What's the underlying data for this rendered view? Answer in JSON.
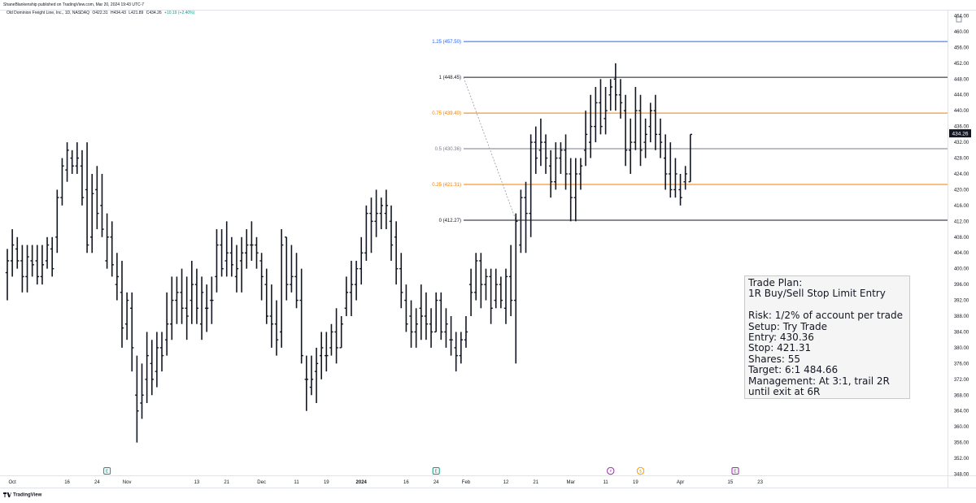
{
  "header": {
    "publisher": "ShaneBlankenship published on TradingView.com, Mar 20, 2024 19:43 UTC-7",
    "symbol": "Old Dominion Freight Line, Inc., 1D, NASDAQ",
    "open": "O422.31",
    "high": "H434.43",
    "low": "L421.89",
    "close": "C434.26",
    "change": "+10.19 (+2.40%)"
  },
  "footer": {
    "brand": "TradingView"
  },
  "trade_plan": {
    "lines": [
      "Trade Plan:",
      "1R Buy/Sell Stop Limit Entry",
      "",
      "Risk: 1/2% of account per trade",
      "Setup: Try Trade",
      "Entry: 430.36",
      "Stop: 421.31",
      "Shares: 55",
      "Target: 6:1  484.66",
      "Management: At 3:1, trail 2R",
      "until exit at 6R"
    ]
  },
  "colors": {
    "bars": "#131722",
    "fib_blue": "#2962ff",
    "fib_orange": "#f57c00",
    "fib_gray": "#787b86",
    "fib_black": "#131722",
    "price_tag_bg": "#131722",
    "event_green": "#089981",
    "event_purple": "#9c27b0",
    "event_orange": "#ff9800"
  },
  "chart_data": {
    "type": "ohlc",
    "ylim": [
      348,
      464
    ],
    "y_ticks": [
      "464.00",
      "460.00",
      "456.00",
      "452.00",
      "448.00",
      "444.00",
      "440.00",
      "436.00",
      "432.00",
      "428.00",
      "424.00",
      "420.00",
      "416.00",
      "412.00",
      "408.00",
      "404.00",
      "400.00",
      "396.00",
      "392.00",
      "388.00",
      "384.00",
      "380.00",
      "376.00",
      "372.00",
      "368.00",
      "364.00",
      "360.00",
      "356.00",
      "352.00",
      "348.00"
    ],
    "x_labels": [
      {
        "label": "Oct",
        "bar": 1
      },
      {
        "label": "16",
        "bar": 12
      },
      {
        "label": "24",
        "bar": 18
      },
      {
        "label": "Nov",
        "bar": 24
      },
      {
        "label": "13",
        "bar": 38
      },
      {
        "label": "21",
        "bar": 44
      },
      {
        "label": "Dec",
        "bar": 51
      },
      {
        "label": "11",
        "bar": 58
      },
      {
        "label": "19",
        "bar": 64
      },
      {
        "label": "2024",
        "bar": 71
      },
      {
        "label": "16",
        "bar": 80
      },
      {
        "label": "24",
        "bar": 86
      },
      {
        "label": "Feb",
        "bar": 92
      },
      {
        "label": "12",
        "bar": 100
      },
      {
        "label": "21",
        "bar": 106
      },
      {
        "label": "Mar",
        "bar": 113
      },
      {
        "label": "11",
        "bar": 120
      },
      {
        "label": "19",
        "bar": 126
      },
      {
        "label": "Apr",
        "bar": 135
      },
      {
        "label": "15",
        "bar": 145
      },
      {
        "label": "23",
        "bar": 151
      }
    ],
    "last_price": "434.26",
    "last_price_value": 434.26,
    "bars": [
      [
        399,
        405,
        392,
        402
      ],
      [
        402,
        410,
        398,
        406
      ],
      [
        405,
        408,
        400,
        402
      ],
      [
        402,
        406,
        394,
        398
      ],
      [
        398,
        406,
        394,
        403
      ],
      [
        402,
        406,
        398,
        401
      ],
      [
        402,
        406,
        396,
        398
      ],
      [
        398,
        406,
        396,
        401
      ],
      [
        402,
        408,
        400,
        406
      ],
      [
        405,
        408,
        398,
        400
      ],
      [
        408,
        420,
        404,
        418
      ],
      [
        418,
        428,
        416,
        426
      ],
      [
        425,
        432,
        422,
        430
      ],
      [
        428,
        430,
        424,
        426
      ],
      [
        426,
        432,
        424,
        428
      ],
      [
        426,
        430,
        416,
        418
      ],
      [
        420,
        432,
        404,
        406
      ],
      [
        408,
        424,
        404,
        419
      ],
      [
        420,
        426,
        410,
        414
      ],
      [
        416,
        424,
        408,
        410
      ],
      [
        402,
        414,
        400,
        408
      ],
      [
        408,
        412,
        398,
        401
      ],
      [
        396,
        404,
        392,
        398
      ],
      [
        394,
        402,
        380,
        385
      ],
      [
        386,
        394,
        382,
        392
      ],
      [
        390,
        394,
        374,
        380
      ],
      [
        368,
        378,
        356,
        364
      ],
      [
        366,
        376,
        362,
        368
      ],
      [
        372,
        384,
        366,
        378
      ],
      [
        376,
        382,
        368,
        372
      ],
      [
        374,
        384,
        370,
        380
      ],
      [
        380,
        384,
        374,
        378
      ],
      [
        382,
        394,
        378,
        386
      ],
      [
        386,
        398,
        382,
        392
      ],
      [
        392,
        398,
        386,
        394
      ],
      [
        394,
        400,
        386,
        390
      ],
      [
        390,
        398,
        382,
        388
      ],
      [
        392,
        402,
        386,
        396
      ],
      [
        396,
        400,
        386,
        390
      ],
      [
        386,
        398,
        382,
        394
      ],
      [
        390,
        396,
        384,
        390
      ],
      [
        392,
        398,
        386,
        392
      ],
      [
        398,
        410,
        394,
        406
      ],
      [
        406,
        410,
        398,
        400
      ],
      [
        402,
        412,
        398,
        404
      ],
      [
        404,
        408,
        398,
        401
      ],
      [
        398,
        406,
        394,
        400
      ],
      [
        402,
        408,
        394,
        404
      ],
      [
        404,
        410,
        400,
        406
      ],
      [
        406,
        412,
        402,
        406
      ],
      [
        406,
        408,
        400,
        404
      ],
      [
        402,
        404,
        392,
        398
      ],
      [
        396,
        400,
        386,
        388
      ],
      [
        388,
        396,
        380,
        386
      ],
      [
        386,
        392,
        378,
        382
      ],
      [
        384,
        410,
        380,
        406
      ],
      [
        408,
        408,
        392,
        396
      ],
      [
        396,
        406,
        394,
        398
      ],
      [
        398,
        404,
        390,
        392
      ],
      [
        392,
        400,
        376,
        378
      ],
      [
        372,
        378,
        364,
        372
      ],
      [
        370,
        378,
        368,
        372
      ],
      [
        374,
        380,
        366,
        376
      ],
      [
        378,
        384,
        372,
        380
      ],
      [
        378,
        384,
        374,
        378
      ],
      [
        380,
        386,
        378,
        384
      ],
      [
        384,
        390,
        376,
        380
      ],
      [
        380,
        388,
        380,
        386
      ],
      [
        390,
        398,
        388,
        394
      ],
      [
        394,
        402,
        388,
        396
      ],
      [
        396,
        402,
        392,
        400
      ],
      [
        400,
        408,
        396,
        404
      ],
      [
        404,
        416,
        402,
        414
      ],
      [
        414,
        418,
        404,
        412
      ],
      [
        412,
        420,
        408,
        414
      ],
      [
        414,
        418,
        410,
        416
      ],
      [
        414,
        420,
        410,
        416
      ],
      [
        412,
        416,
        402,
        406
      ],
      [
        408,
        412,
        396,
        400
      ],
      [
        400,
        404,
        390,
        394
      ],
      [
        392,
        396,
        384,
        386
      ],
      [
        388,
        392,
        380,
        384
      ],
      [
        384,
        390,
        380,
        386
      ],
      [
        390,
        396,
        382,
        388
      ],
      [
        388,
        394,
        382,
        386
      ],
      [
        386,
        390,
        380,
        384
      ],
      [
        384,
        394,
        384,
        392
      ],
      [
        392,
        394,
        382,
        384
      ],
      [
        384,
        390,
        380,
        386
      ],
      [
        382,
        388,
        378,
        382
      ],
      [
        380,
        384,
        374,
        378
      ],
      [
        378,
        384,
        376,
        382
      ],
      [
        382,
        388,
        380,
        384
      ],
      [
        396,
        400,
        388,
        394
      ],
      [
        394,
        404,
        392,
        402
      ],
      [
        402,
        404,
        390,
        396
      ],
      [
        396,
        400,
        392,
        398
      ],
      [
        398,
        400,
        386,
        390
      ],
      [
        392,
        400,
        390,
        396
      ],
      [
        396,
        398,
        390,
        392
      ],
      [
        390,
        400,
        386,
        398
      ],
      [
        398,
        406,
        388,
        392
      ],
      [
        392,
        414,
        376,
        412
      ],
      [
        406,
        420,
        404,
        418
      ],
      [
        418,
        422,
        404,
        414
      ],
      [
        414,
        434,
        408,
        432
      ],
      [
        432,
        436,
        424,
        428
      ],
      [
        430,
        438,
        426,
        432
      ],
      [
        432,
        434,
        424,
        428
      ],
      [
        426,
        430,
        418,
        422
      ],
      [
        422,
        432,
        420,
        428
      ],
      [
        428,
        432,
        424,
        430
      ],
      [
        430,
        434,
        420,
        424
      ],
      [
        424,
        428,
        412,
        418
      ],
      [
        418,
        428,
        412,
        424
      ],
      [
        424,
        428,
        420,
        426
      ],
      [
        430,
        440,
        426,
        434
      ],
      [
        432,
        444,
        428,
        436
      ],
      [
        436,
        446,
        432,
        442
      ],
      [
        442,
        448,
        434,
        436
      ],
      [
        438,
        446,
        434,
        440
      ],
      [
        444,
        448,
        440,
        446
      ],
      [
        448,
        452,
        440,
        444
      ],
      [
        444,
        448,
        438,
        442
      ],
      [
        440,
        444,
        426,
        430
      ],
      [
        430,
        438,
        424,
        432
      ],
      [
        432,
        446,
        430,
        440
      ],
      [
        440,
        444,
        426,
        430
      ],
      [
        432,
        438,
        428,
        434
      ],
      [
        436,
        442,
        432,
        440
      ],
      [
        440,
        444,
        430,
        434
      ],
      [
        434,
        438,
        428,
        432
      ],
      [
        428,
        434,
        420,
        424
      ],
      [
        424,
        432,
        418,
        420
      ],
      [
        420,
        428,
        418,
        424
      ],
      [
        420,
        424,
        416,
        418
      ],
      [
        422,
        426,
        420,
        424
      ],
      [
        422,
        434,
        422,
        434
      ]
    ],
    "fib": {
      "x_start_bar": 92,
      "levels": [
        {
          "label": "1.25 (457.50)",
          "value": 457.5,
          "color": "blue"
        },
        {
          "label": "1 (448.45)",
          "value": 448.45,
          "color": "black"
        },
        {
          "label": "0.75 (439.40)",
          "value": 439.4,
          "color": "orange"
        },
        {
          "label": "0.5 (430.36)",
          "value": 430.36,
          "color": "gray"
        },
        {
          "label": "0.25 (421.31)",
          "value": 421.31,
          "color": "orange"
        },
        {
          "label": "0 (412.27)",
          "value": 412.27,
          "color": "black"
        }
      ],
      "trend_from": {
        "bar": 92,
        "value": 448.45
      },
      "trend_to": {
        "bar": 102,
        "value": 412.27
      }
    },
    "events": [
      {
        "label": "E",
        "bar": 20,
        "color": "green"
      },
      {
        "label": "E",
        "bar": 86,
        "color": "green"
      },
      {
        "label": "⚡",
        "bar": 121,
        "color": "purple"
      },
      {
        "label": "$",
        "bar": 127,
        "color": "orange"
      },
      {
        "label": "E",
        "bar": 146,
        "color": "purple"
      }
    ]
  }
}
